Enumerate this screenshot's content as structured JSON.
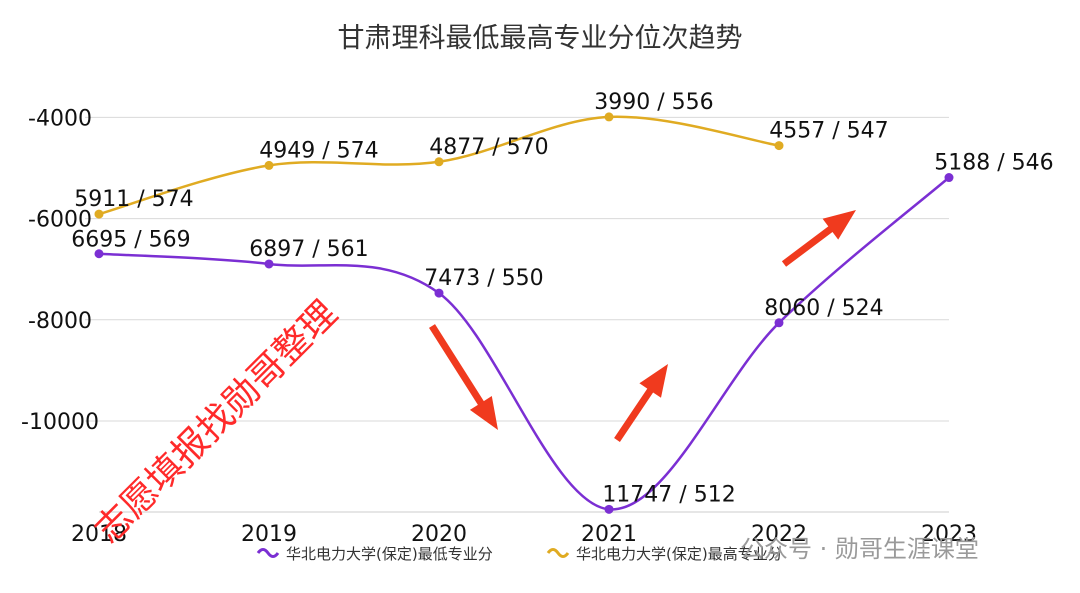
{
  "chart_data": {
    "type": "line",
    "title": "甘肃理科最低最高专业分位次趋势",
    "x": [
      "2018",
      "2019",
      "2020",
      "2021",
      "2022",
      "2023"
    ],
    "yticks": [
      -4000,
      -6000,
      -8000,
      -10000
    ],
    "ylim": [
      -11800,
      -3300
    ],
    "grid": true,
    "legend_position": "bottom",
    "series": [
      {
        "name": "华北电力大学(保定)最低专业分",
        "color": "#7b2fd3",
        "values": [
          -6695,
          -6897,
          -7473,
          -11747,
          -8060,
          -5188
        ],
        "labels": [
          "6695 / 569",
          "6897 / 561",
          "7473 / 550",
          "11747 / 512",
          "8060 / 524",
          "5188 / 546"
        ]
      },
      {
        "name": "华北电力大学(保定)最高专业分",
        "color": "#e0ab22",
        "values": [
          -5911,
          -4949,
          -4877,
          -3990,
          -4557,
          null
        ],
        "labels": [
          "5911 / 574",
          "4949 / 574",
          "4877 / 570",
          "3990 / 556",
          "4557 / 547",
          null
        ]
      }
    ],
    "annotation_color": "#f03a1e"
  },
  "watermark": {
    "diagonal_text": "志愿填报找勋哥整理",
    "footer_text": "公众号 · 勋哥生涯课堂"
  }
}
